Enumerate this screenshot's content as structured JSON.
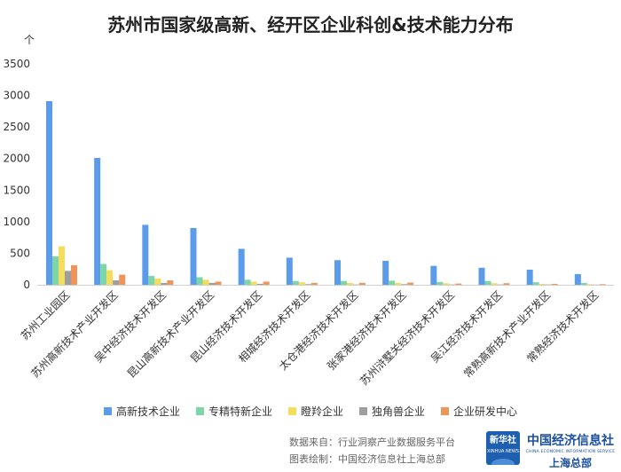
{
  "chart_data": {
    "type": "bar",
    "title": "苏州市国家级高新、经开区企业科创&技术能力分布",
    "ylabel": "个",
    "ylim": [
      0,
      3500
    ],
    "yticks": [
      0,
      500,
      1000,
      1500,
      2000,
      2500,
      3000,
      3500
    ],
    "grid": false,
    "legend_position": "bottom",
    "categories": [
      "苏州工业园区",
      "苏州高新技术产业开发区",
      "吴中经济技术开发区",
      "昆山高新技术产业开发区",
      "昆山经济技术开发区",
      "相城经济技术开发区",
      "太仓港经济技术开发区",
      "张家港经济技术开发区",
      "苏州浒墅关经济技术开发区",
      "吴江经济技术开发区",
      "常熟高新技术产业开发区",
      "常熟经济技术开发区"
    ],
    "series": [
      {
        "name": "高新技术企业",
        "color": "#5b9bea",
        "values": [
          2910,
          2010,
          950,
          900,
          570,
          430,
          390,
          380,
          300,
          270,
          240,
          170
        ]
      },
      {
        "name": "专精特新企业",
        "color": "#7dd6a8",
        "values": [
          450,
          330,
          140,
          120,
          80,
          60,
          60,
          65,
          45,
          60,
          40,
          30
        ]
      },
      {
        "name": "瞪羚企业",
        "color": "#f5dc5c",
        "values": [
          610,
          230,
          100,
          80,
          50,
          40,
          30,
          30,
          25,
          25,
          15,
          10
        ]
      },
      {
        "name": "独角兽企业",
        "color": "#9e9e9e",
        "values": [
          220,
          70,
          30,
          30,
          15,
          10,
          5,
          10,
          5,
          5,
          5,
          3
        ]
      },
      {
        "name": "企业研发中心",
        "color": "#f0955a",
        "values": [
          310,
          160,
          70,
          50,
          50,
          30,
          30,
          35,
          20,
          25,
          15,
          10
        ]
      }
    ]
  },
  "footer": {
    "source": "数据来自：行业洞察产业数据服务平台",
    "drawn": "图表绘制：中国经济信息社上海总部"
  },
  "logo": {
    "badge": "新华社",
    "badge_en": "XINHUA NEWS",
    "name": "中国经济信息社",
    "name_en": "CHINA ECONOMIC INFORMATION SERVICE",
    "sub": "上海总部"
  }
}
